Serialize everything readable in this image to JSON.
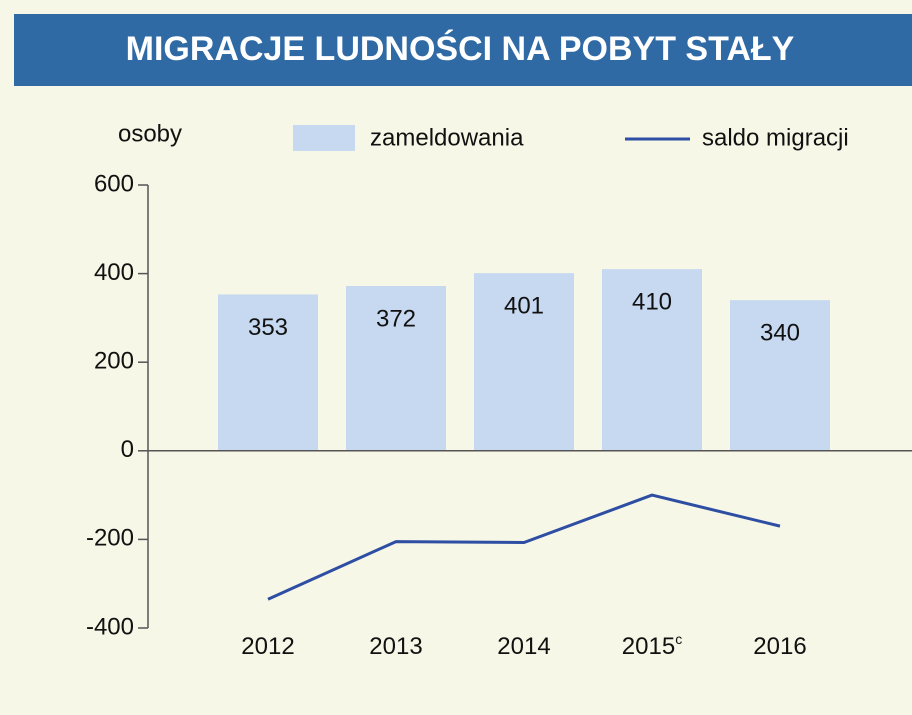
{
  "chart_data": {
    "type": "bar_line",
    "title": "MIGRACJE LUDNOŚCI NA POBYT STAŁY",
    "y_label": "osoby",
    "categories": [
      "2012",
      "2013",
      "2014",
      "2015",
      "2016"
    ],
    "category_footnotes": [
      {
        "index": 3,
        "mark": "c"
      }
    ],
    "series": [
      {
        "name": "zameldowania",
        "type": "bar",
        "color": "#c6d9f1",
        "values": [
          353,
          372,
          401,
          410,
          340
        ]
      },
      {
        "name": "saldo migracji",
        "type": "line",
        "color": "#2e4ea3",
        "values": [
          -335,
          -205,
          -207,
          -100,
          -170
        ]
      }
    ],
    "ylim": [
      -400,
      600
    ],
    "yticks": [
      -400,
      -200,
      0,
      200,
      400,
      600
    ]
  }
}
